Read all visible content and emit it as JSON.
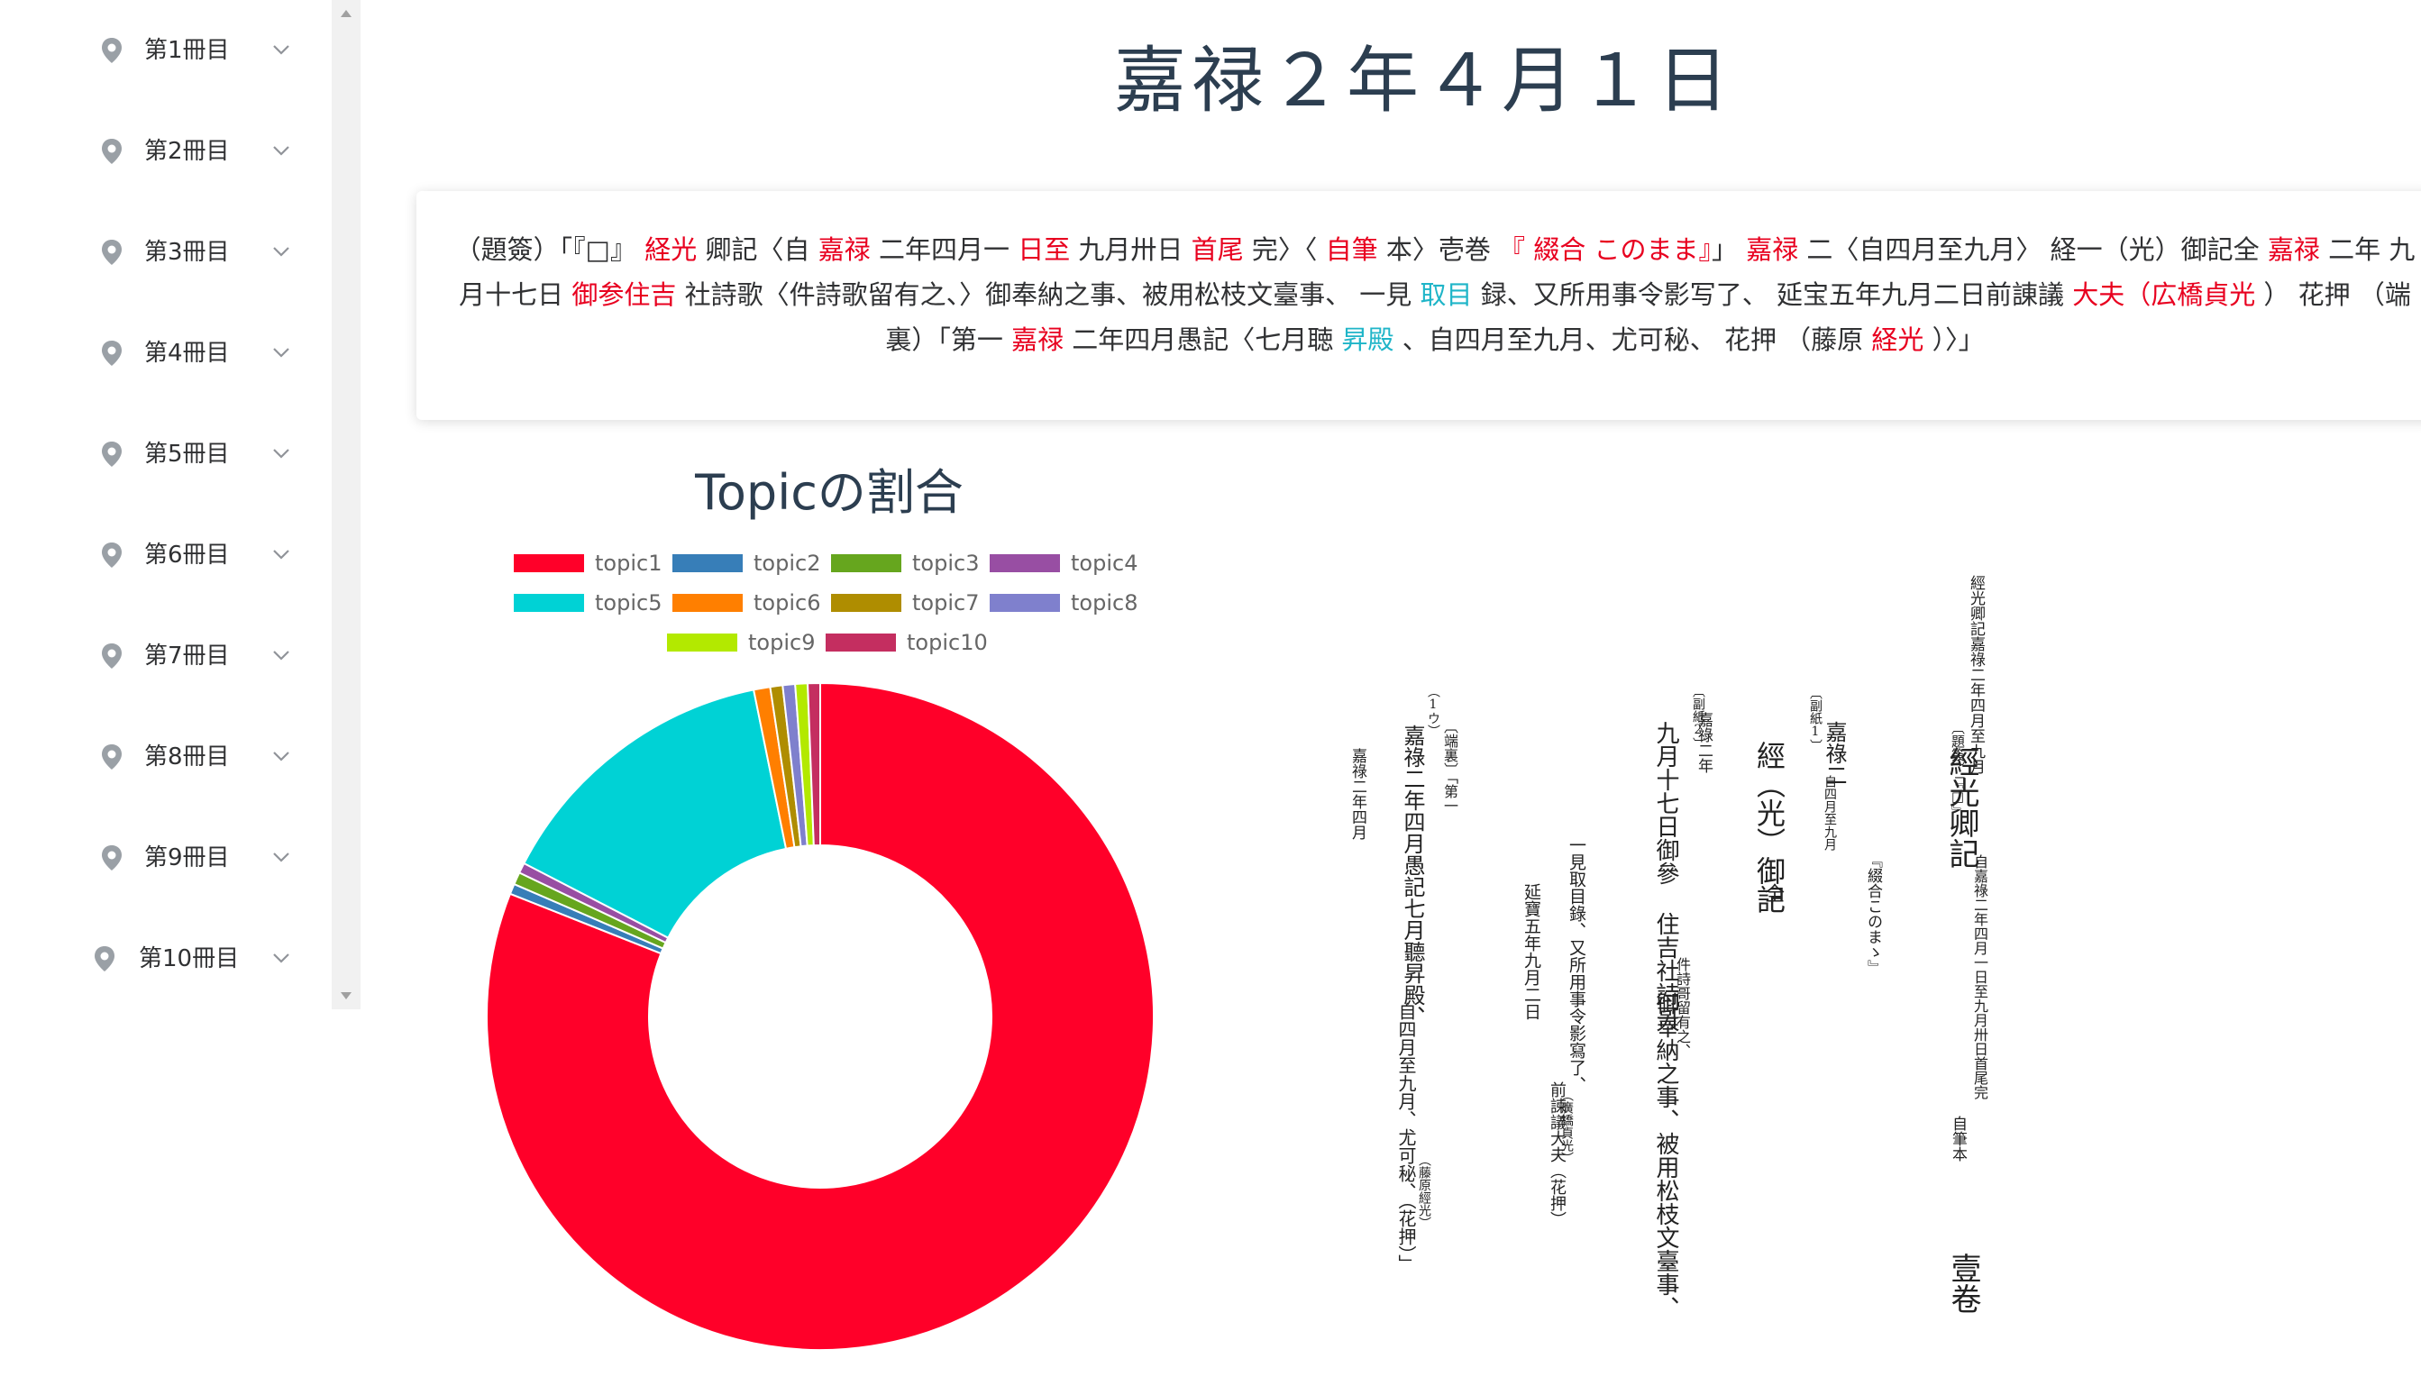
{
  "sidebar": {
    "items": [
      {
        "label": "第1冊目"
      },
      {
        "label": "第2冊目"
      },
      {
        "label": "第3冊目"
      },
      {
        "label": "第4冊目"
      },
      {
        "label": "第5冊目"
      },
      {
        "label": "第6冊目"
      },
      {
        "label": "第7冊目"
      },
      {
        "label": "第8冊目"
      },
      {
        "label": "第9冊目"
      },
      {
        "label": "第10冊目"
      }
    ]
  },
  "header": {
    "title": "嘉禄２年４月１日"
  },
  "text": {
    "segments": [
      {
        "t": "（題簽）「『□』 ",
        "c": "n"
      },
      {
        "t": "経光",
        "c": "r"
      },
      {
        "t": " 卿記〈自 ",
        "c": "n"
      },
      {
        "t": "嘉禄",
        "c": "r"
      },
      {
        "t": " 二年四月一 ",
        "c": "n"
      },
      {
        "t": "日至",
        "c": "r"
      },
      {
        "t": " 九月卅日 ",
        "c": "n"
      },
      {
        "t": "首尾",
        "c": "r"
      },
      {
        "t": " 完〉〈 ",
        "c": "n"
      },
      {
        "t": "自筆",
        "c": "r"
      },
      {
        "t": " 本〉壱巻 ",
        "c": "n"
      },
      {
        "t": "『 綴合 このまま』",
        "c": "r"
      },
      {
        "t": "」 ",
        "c": "n"
      },
      {
        "t": "嘉禄",
        "c": "r"
      },
      {
        "t": " 二〈自四月至九月〉 経一（光）御記全 ",
        "c": "n"
      },
      {
        "t": "嘉禄",
        "c": "r"
      },
      {
        "t": " 二年 九月十七日 ",
        "c": "n"
      },
      {
        "t": "御参住吉",
        "c": "r"
      },
      {
        "t": " 社詩歌〈件詩歌留有之、〉御奉納之事、被用松枝文臺事、 一見 ",
        "c": "n"
      },
      {
        "t": "取目",
        "c": "c"
      },
      {
        "t": " 録、又所用事令影写了、 延宝五年九月二日前諌議 ",
        "c": "n"
      },
      {
        "t": "大夫（広橋貞光",
        "c": "r"
      },
      {
        "t": " ） 花押 （端裏）「第一 ",
        "c": "n"
      },
      {
        "t": "嘉禄",
        "c": "r"
      },
      {
        "t": " 二年四月愚記〈七月聴 ",
        "c": "n"
      },
      {
        "t": "昇殿",
        "c": "c"
      },
      {
        "t": " 、自四月至九月、尤可秘、 花押 （藤原 ",
        "c": "n"
      },
      {
        "t": "経光",
        "c": "r"
      },
      {
        "t": " ）〉」",
        "c": "n"
      }
    ]
  },
  "chart_data": {
    "type": "pie",
    "title": "Topicの割合",
    "donut": true,
    "legend_position": "top",
    "categories": [
      "topic1",
      "topic2",
      "topic3",
      "topic4",
      "topic5",
      "topic6",
      "topic7",
      "topic8",
      "topic9",
      "topic10"
    ],
    "values": [
      81.0,
      0.5,
      0.6,
      0.5,
      14.2,
      0.8,
      0.6,
      0.6,
      0.6,
      0.6
    ],
    "colors": [
      "#ff0029",
      "#377eb8",
      "#66a61e",
      "#984ea3",
      "#00d2d5",
      "#ff7f00",
      "#af8d00",
      "#7f80cd",
      "#b3e900",
      "#c42e60"
    ]
  },
  "document_image": {
    "columns": [
      {
        "text": "經光卿記嘉祿二年四月至九月"
      },
      {
        "text": "〔題簽〕「『□』"
      },
      {
        "text": "經光卿記"
      },
      {
        "text": "自嘉祿二年四月一日至九月卅日首尾完"
      },
      {
        "text": "自筆本"
      },
      {
        "text": "壹卷"
      },
      {
        "text": "〔副紙1〕"
      },
      {
        "text": "嘉祿二"
      },
      {
        "text": "自四月至九月"
      },
      {
        "text": "『綴合このまゝ』"
      },
      {
        "text": "經（光）御記"
      },
      {
        "text": "全"
      },
      {
        "text": "〔副紙2〕"
      },
      {
        "text": "嘉祿二年"
      },
      {
        "text": "九月十七日御參 住吉社詩哥"
      },
      {
        "text": "件詩哥留有之、"
      },
      {
        "text": "御奉納之事、被用松枝文臺事、"
      },
      {
        "text": "一見取目錄、又所用事令影寫了、"
      },
      {
        "text": "延寶五年九月二日"
      },
      {
        "text": "前諫議大夫（花押）"
      },
      {
        "text": "（廣橋貞光）"
      },
      {
        "text": "（1ウ）"
      },
      {
        "text": "〔端裏〕「第一"
      },
      {
        "text": "嘉祿二年四月愚記七月聽昇殿、"
      },
      {
        "text": "自四月至九月、尤可秘、（花押）」"
      },
      {
        "text": "（藤原經光）"
      },
      {
        "text": "嘉祿二年四月"
      }
    ]
  }
}
